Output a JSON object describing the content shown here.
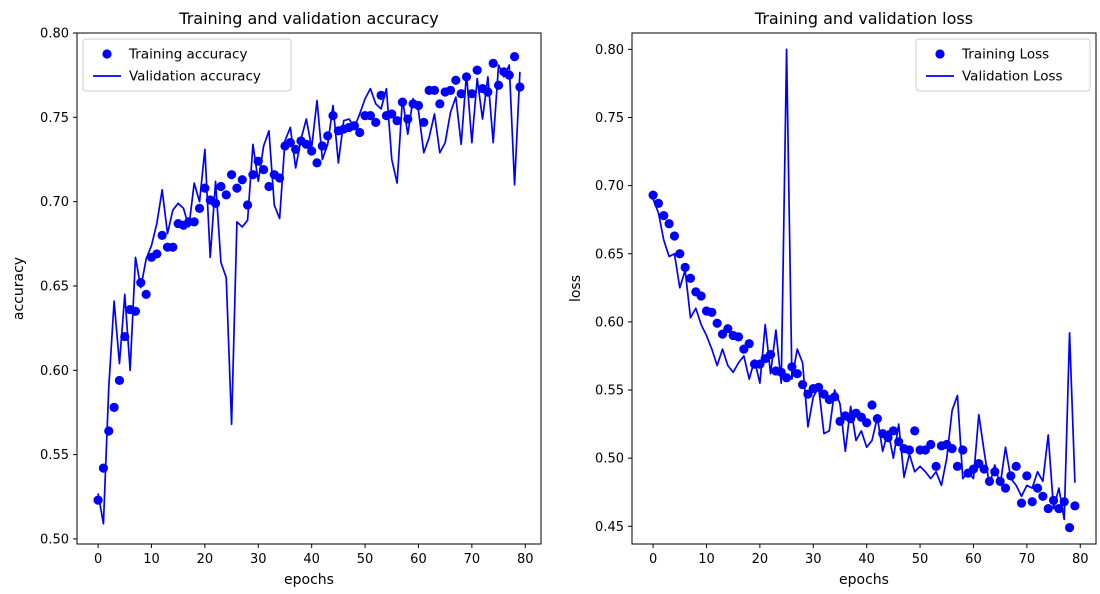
{
  "chart_data": [
    {
      "type": "line",
      "title": "Training and validation accuracy",
      "xlabel": "epochs",
      "ylabel": "accuracy",
      "xlim": [
        -3.95,
        82.95
      ],
      "ylim": [
        0.497,
        0.8
      ],
      "xticks": [
        0,
        10,
        20,
        30,
        40,
        50,
        60,
        70,
        80
      ],
      "yticks": [
        0.5,
        0.55,
        0.6,
        0.65,
        0.7,
        0.75,
        0.8
      ],
      "ytick_labels": [
        "0.50",
        "0.55",
        "0.60",
        "0.65",
        "0.70",
        "0.75",
        "0.80"
      ],
      "legend_position": "upper-left",
      "color": "#0000ff",
      "series": [
        {
          "name": "Training accuracy",
          "style": "markers",
          "x": [
            0,
            1,
            2,
            3,
            4,
            5,
            6,
            7,
            8,
            9,
            10,
            11,
            12,
            13,
            14,
            15,
            16,
            17,
            18,
            19,
            20,
            21,
            22,
            23,
            24,
            25,
            26,
            27,
            28,
            29,
            30,
            31,
            32,
            33,
            34,
            35,
            36,
            37,
            38,
            39,
            40,
            41,
            42,
            43,
            44,
            45,
            46,
            47,
            48,
            49,
            50,
            51,
            52,
            53,
            54,
            55,
            56,
            57,
            58,
            59,
            60,
            61,
            62,
            63,
            64,
            65,
            66,
            67,
            68,
            69,
            70,
            71,
            72,
            73,
            74,
            75,
            76,
            77,
            78,
            79
          ],
          "y": [
            0.523,
            0.542,
            0.564,
            0.578,
            0.594,
            0.62,
            0.636,
            0.635,
            0.652,
            0.645,
            0.667,
            0.669,
            0.68,
            0.673,
            0.673,
            0.687,
            0.686,
            0.688,
            0.688,
            0.696,
            0.708,
            0.701,
            0.699,
            0.709,
            0.704,
            0.716,
            0.708,
            0.713,
            0.698,
            0.716,
            0.724,
            0.719,
            0.709,
            0.716,
            0.714,
            0.733,
            0.735,
            0.731,
            0.736,
            0.734,
            0.73,
            0.723,
            0.733,
            0.739,
            0.751,
            0.742,
            0.743,
            0.744,
            0.745,
            0.741,
            0.751,
            0.751,
            0.747,
            0.763,
            0.751,
            0.752,
            0.748,
            0.759,
            0.749,
            0.758,
            0.757,
            0.747,
            0.766,
            0.766,
            0.758,
            0.765,
            0.766,
            0.772,
            0.764,
            0.774,
            0.764,
            0.778,
            0.767,
            0.765,
            0.782,
            0.769,
            0.777,
            0.775,
            0.786,
            0.768
          ]
        },
        {
          "name": "Validation accuracy",
          "style": "line",
          "x": [
            0,
            1,
            2,
            3,
            4,
            5,
            6,
            7,
            8,
            9,
            10,
            11,
            12,
            13,
            14,
            15,
            16,
            17,
            18,
            19,
            20,
            21,
            22,
            23,
            24,
            25,
            26,
            27,
            28,
            29,
            30,
            31,
            32,
            33,
            34,
            35,
            36,
            37,
            38,
            39,
            40,
            41,
            42,
            43,
            44,
            45,
            46,
            47,
            48,
            49,
            50,
            51,
            52,
            53,
            54,
            55,
            56,
            57,
            58,
            59,
            60,
            61,
            62,
            63,
            64,
            65,
            66,
            67,
            68,
            69,
            70,
            71,
            72,
            73,
            74,
            75,
            76,
            77,
            78,
            79
          ],
          "y": [
            0.527,
            0.509,
            0.59,
            0.641,
            0.604,
            0.645,
            0.6,
            0.667,
            0.649,
            0.666,
            0.674,
            0.687,
            0.707,
            0.681,
            0.695,
            0.699,
            0.696,
            0.685,
            0.711,
            0.7,
            0.731,
            0.667,
            0.712,
            0.664,
            0.655,
            0.568,
            0.688,
            0.685,
            0.689,
            0.734,
            0.712,
            0.733,
            0.742,
            0.698,
            0.69,
            0.736,
            0.744,
            0.72,
            0.737,
            0.749,
            0.732,
            0.76,
            0.725,
            0.734,
            0.757,
            0.723,
            0.748,
            0.749,
            0.744,
            0.752,
            0.761,
            0.767,
            0.758,
            0.755,
            0.767,
            0.725,
            0.711,
            0.761,
            0.74,
            0.761,
            0.754,
            0.729,
            0.738,
            0.752,
            0.729,
            0.735,
            0.753,
            0.762,
            0.734,
            0.776,
            0.735,
            0.773,
            0.749,
            0.774,
            0.735,
            0.781,
            0.774,
            0.781,
            0.71,
            0.777
          ]
        }
      ]
    },
    {
      "type": "line",
      "title": "Training and validation loss",
      "xlabel": "epochs",
      "ylabel": "loss",
      "xlim": [
        -3.95,
        82.95
      ],
      "ylim": [
        0.437,
        0.812
      ],
      "xticks": [
        0,
        10,
        20,
        30,
        40,
        50,
        60,
        70,
        80
      ],
      "yticks": [
        0.45,
        0.5,
        0.55,
        0.6,
        0.65,
        0.7,
        0.75,
        0.8
      ],
      "ytick_labels": [
        "0.45",
        "0.50",
        "0.55",
        "0.60",
        "0.65",
        "0.70",
        "0.75",
        "0.80"
      ],
      "legend_position": "upper-right",
      "color": "#0000ff",
      "series": [
        {
          "name": "Training Loss",
          "style": "markers",
          "x": [
            0,
            1,
            2,
            3,
            4,
            5,
            6,
            7,
            8,
            9,
            10,
            11,
            12,
            13,
            14,
            15,
            16,
            17,
            18,
            19,
            20,
            21,
            22,
            23,
            24,
            25,
            26,
            27,
            28,
            29,
            30,
            31,
            32,
            33,
            34,
            35,
            36,
            37,
            38,
            39,
            40,
            41,
            42,
            43,
            44,
            45,
            46,
            47,
            48,
            49,
            50,
            51,
            52,
            53,
            54,
            55,
            56,
            57,
            58,
            59,
            60,
            61,
            62,
            63,
            64,
            65,
            66,
            67,
            68,
            69,
            70,
            71,
            72,
            73,
            74,
            75,
            76,
            77,
            78,
            79
          ],
          "y": [
            0.693,
            0.687,
            0.678,
            0.672,
            0.663,
            0.65,
            0.64,
            0.632,
            0.622,
            0.619,
            0.608,
            0.607,
            0.599,
            0.591,
            0.595,
            0.59,
            0.589,
            0.58,
            0.584,
            0.569,
            0.569,
            0.573,
            0.576,
            0.564,
            0.563,
            0.559,
            0.567,
            0.562,
            0.554,
            0.547,
            0.551,
            0.552,
            0.547,
            0.543,
            0.545,
            0.527,
            0.531,
            0.529,
            0.533,
            0.53,
            0.526,
            0.539,
            0.529,
            0.518,
            0.515,
            0.52,
            0.512,
            0.507,
            0.506,
            0.52,
            0.506,
            0.506,
            0.51,
            0.494,
            0.509,
            0.51,
            0.507,
            0.494,
            0.506,
            0.489,
            0.492,
            0.496,
            0.492,
            0.483,
            0.49,
            0.483,
            0.478,
            0.487,
            0.494,
            0.467,
            0.487,
            0.468,
            0.478,
            0.472,
            0.463,
            0.469,
            0.463,
            0.468,
            0.449,
            0.465
          ]
        },
        {
          "name": "Validation Loss",
          "style": "line",
          "x": [
            0,
            1,
            2,
            3,
            4,
            5,
            6,
            7,
            8,
            9,
            10,
            11,
            12,
            13,
            14,
            15,
            16,
            17,
            18,
            19,
            20,
            21,
            22,
            23,
            24,
            25,
            26,
            27,
            28,
            29,
            30,
            31,
            32,
            33,
            34,
            35,
            36,
            37,
            38,
            39,
            40,
            41,
            42,
            43,
            44,
            45,
            46,
            47,
            48,
            49,
            50,
            51,
            52,
            53,
            54,
            55,
            56,
            57,
            58,
            59,
            60,
            61,
            62,
            63,
            64,
            65,
            66,
            67,
            68,
            69,
            70,
            71,
            72,
            73,
            74,
            75,
            76,
            77,
            78,
            79
          ],
          "y": [
            0.69,
            0.68,
            0.66,
            0.648,
            0.65,
            0.625,
            0.638,
            0.603,
            0.61,
            0.598,
            0.59,
            0.58,
            0.568,
            0.58,
            0.568,
            0.563,
            0.57,
            0.575,
            0.558,
            0.572,
            0.555,
            0.598,
            0.562,
            0.594,
            0.555,
            0.8,
            0.558,
            0.58,
            0.57,
            0.523,
            0.545,
            0.552,
            0.518,
            0.52,
            0.55,
            0.54,
            0.505,
            0.538,
            0.513,
            0.52,
            0.508,
            0.513,
            0.53,
            0.505,
            0.52,
            0.5,
            0.525,
            0.486,
            0.503,
            0.49,
            0.494,
            0.49,
            0.485,
            0.49,
            0.48,
            0.5,
            0.535,
            0.546,
            0.485,
            0.49,
            0.485,
            0.532,
            0.505,
            0.48,
            0.495,
            0.48,
            0.508,
            0.485,
            0.48,
            0.472,
            0.48,
            0.478,
            0.49,
            0.483,
            0.517,
            0.463,
            0.478,
            0.455,
            0.592,
            0.482
          ]
        }
      ]
    }
  ]
}
